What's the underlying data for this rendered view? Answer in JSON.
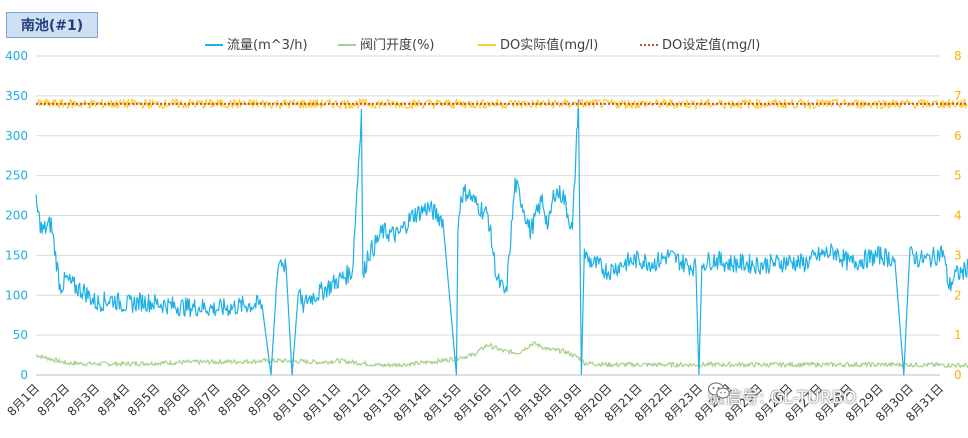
{
  "chart_data": {
    "type": "line",
    "title": "南池(#1)",
    "x_categories": [
      "8月1日",
      "8月2日",
      "8月3日",
      "8月4日",
      "8月5日",
      "8月6日",
      "8月7日",
      "8月8日",
      "8月9日",
      "8月10日",
      "8月11日",
      "8月12日",
      "8月13日",
      "8月14日",
      "8月15日",
      "8月16日",
      "8月17日",
      "8月18日",
      "8月19日",
      "8月20日",
      "8月21日",
      "8月22日",
      "8月23日",
      "8月24日",
      "8月25日",
      "8月26日",
      "8月27日",
      "8月28日",
      "8月29日",
      "8月30日",
      "8月31日"
    ],
    "y_left": {
      "min": 0,
      "max": 400,
      "ticks": [
        0,
        50,
        100,
        150,
        200,
        250,
        300,
        350,
        400
      ]
    },
    "y_right": {
      "min": 0,
      "max": 8,
      "ticks": [
        0,
        1,
        2,
        3,
        4,
        5,
        6,
        7,
        8
      ]
    },
    "grid": "horizontal",
    "legend_position": "top",
    "series": [
      {
        "name": "流量(m^3/h)",
        "axis": "left",
        "color": "#1fb0e6",
        "style": "solid",
        "x": [
          0,
          0.2,
          0.5,
          0.8,
          1.0,
          1.3,
          1.6,
          2.0,
          2.5,
          3.0,
          3.5,
          4.0,
          4.5,
          5.0,
          5.5,
          6.0,
          6.5,
          7.0,
          7.5,
          7.8,
          7.95,
          8.0,
          8.1,
          8.3,
          8.5,
          8.7,
          8.8,
          8.9,
          9.0,
          9.5,
          10.0,
          10.5,
          10.8,
          10.85,
          11.0,
          11.2,
          11.5,
          12.0,
          12.5,
          13.0,
          13.5,
          13.95,
          14.0,
          14.1,
          14.3,
          14.6,
          15.0,
          15.3,
          15.6,
          15.9,
          16.1,
          16.4,
          16.8,
          17.0,
          17.2,
          17.5,
          17.8,
          18.0,
          18.1,
          18.2,
          18.3,
          18.5,
          19.0,
          19.5,
          20.0,
          20.5,
          21.0,
          21.5,
          21.9,
          22.0,
          22.1,
          22.5,
          23.0,
          23.5,
          24.0,
          24.5,
          25.0,
          25.5,
          26.0,
          26.5,
          27.0,
          27.5,
          28.0,
          28.5,
          28.8,
          29.0,
          29.1,
          29.3,
          29.6,
          29.9,
          30.1,
          30.3,
          30.5,
          30.8,
          31.0
        ],
        "y": [
          215,
          180,
          190,
          110,
          120,
          110,
          105,
          90,
          95,
          88,
          92,
          90,
          87,
          85,
          85,
          83,
          85,
          88,
          88,
          0,
          90,
          130,
          145,
          135,
          0,
          110,
          90,
          85,
          95,
          105,
          118,
          130,
          330,
          120,
          150,
          160,
          180,
          175,
          200,
          210,
          195,
          0,
          180,
          225,
          230,
          215,
          200,
          120,
          100,
          240,
          220,
          180,
          220,
          185,
          230,
          225,
          180,
          345,
          0,
          155,
          145,
          140,
          130,
          140,
          145,
          140,
          150,
          140,
          135,
          0,
          140,
          145,
          140,
          140,
          138,
          140,
          142,
          140,
          150,
          155,
          140,
          145,
          150,
          145,
          0,
          150,
          150,
          145,
          145,
          150,
          155,
          110,
          125,
          130,
          140
        ],
        "noise": 12
      },
      {
        "name": "阀门开度(%)",
        "axis": "left",
        "color": "#a9d18e",
        "style": "solid",
        "x": [
          0,
          0.5,
          1.0,
          2.0,
          3.0,
          5.0,
          7.0,
          8.0,
          9.5,
          10.0,
          10.8,
          11.5,
          12.5,
          13.5,
          14.5,
          15.0,
          15.5,
          16.0,
          16.5,
          17.0,
          17.5,
          18.0,
          18.2,
          19.0,
          21.0,
          25.0,
          29.0,
          31.0
        ],
        "y": [
          25,
          20,
          15,
          14,
          14,
          16,
          17,
          18,
          16,
          18,
          15,
          12,
          14,
          18,
          25,
          38,
          30,
          28,
          40,
          32,
          30,
          22,
          15,
          13,
          13,
          13,
          13,
          12
        ],
        "noise": 3
      },
      {
        "name": "DO实际值(mg/l)",
        "axis": "right",
        "color": "#ffcc33",
        "style": "solid",
        "x": [
          0,
          31
        ],
        "y": [
          6.8,
          6.8
        ],
        "noise": 0.12
      },
      {
        "name": "DO设定值(mg/l)",
        "axis": "right",
        "color": "#c0504d",
        "style": "dotted",
        "x": [
          0,
          31
        ],
        "y": [
          6.8,
          6.8
        ],
        "noise": 0
      }
    ]
  },
  "watermark": {
    "text": "微信号: GL-TURBO",
    "icon": "wechat-icon"
  }
}
